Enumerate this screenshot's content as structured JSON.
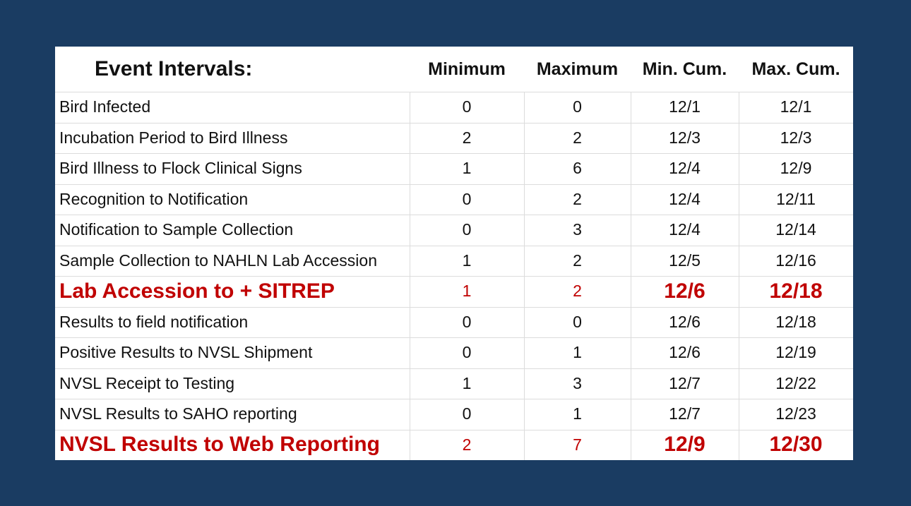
{
  "table": {
    "title": "Event Intervals:",
    "columns": [
      "Minimum",
      "Maximum",
      "Min. Cum.",
      "Max. Cum."
    ],
    "rows": [
      [
        "Bird Infected",
        0,
        0,
        "12/1",
        "12/1"
      ],
      [
        "Incubation Period to Bird Illness",
        2,
        2,
        "12/3",
        "12/3"
      ],
      [
        "Bird Illness to Flock Clinical Signs",
        1,
        6,
        "12/4",
        "12/9"
      ],
      [
        "Recognition to Notification",
        0,
        2,
        "12/4",
        "12/11"
      ],
      [
        "Notification to Sample Collection",
        0,
        3,
        "12/4",
        "12/14"
      ],
      [
        "Sample Collection to NAHLN Lab Accession",
        1,
        2,
        "12/5",
        "12/16"
      ],
      [
        "Lab Accession to + SITREP",
        1,
        2,
        "12/6",
        "12/18"
      ],
      [
        "Results to field notification",
        0,
        0,
        "12/6",
        "12/18"
      ],
      [
        "Positive Results to NVSL Shipment",
        0,
        1,
        "12/6",
        "12/19"
      ],
      [
        "NVSL Receipt to Testing",
        1,
        3,
        "12/7",
        "12/22"
      ],
      [
        "NVSL Results to SAHO reporting",
        0,
        1,
        "12/7",
        "12/23"
      ],
      [
        "NVSL Results to Web Reporting",
        2,
        7,
        "12/9",
        "12/30"
      ]
    ]
  }
}
